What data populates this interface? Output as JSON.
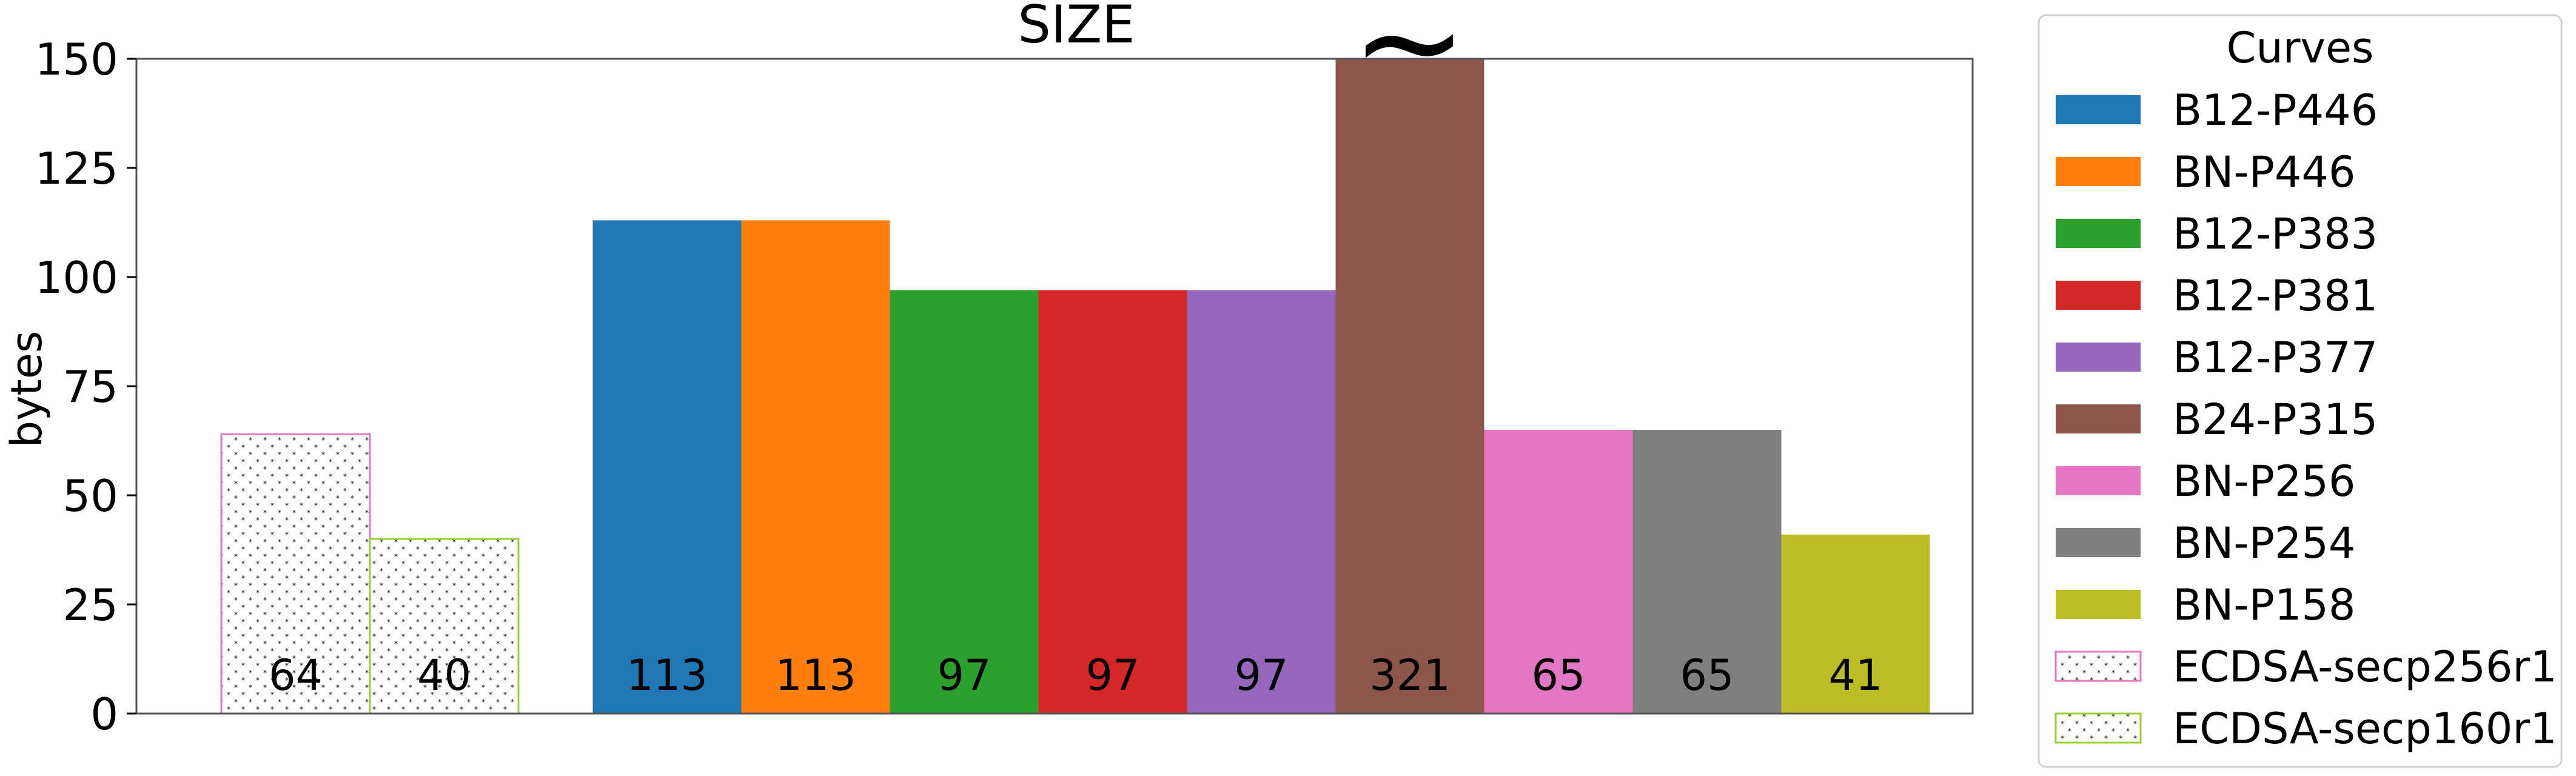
{
  "chart_data": {
    "type": "bar",
    "title": "SIZE",
    "xlabel": "",
    "ylabel": "bytes",
    "ylim": [
      0,
      150
    ],
    "yticks": [
      0,
      25,
      50,
      75,
      100,
      125,
      150
    ],
    "grid": false,
    "legend_title": "Curves",
    "legend_position": "right, outside plot",
    "break_marker": "~",
    "series": [
      {
        "name": "ECDSA-secp256r1",
        "value": 64,
        "label": "64",
        "color": "#e377c2",
        "hatch": true,
        "slot": 0
      },
      {
        "name": "ECDSA-secp160r1",
        "value": 40,
        "label": "40",
        "color": "#9acd32",
        "hatch": true,
        "slot": 1
      },
      {
        "name": "B12-P446",
        "value": 113,
        "label": "113",
        "color": "#1f77b4",
        "hatch": false,
        "slot": 2.5
      },
      {
        "name": "BN-P446",
        "value": 113,
        "label": "113",
        "color": "#ff7f0e",
        "hatch": false,
        "slot": 3.5
      },
      {
        "name": "B12-P383",
        "value": 97,
        "label": "97",
        "color": "#2ca02c",
        "hatch": false,
        "slot": 4.5
      },
      {
        "name": "B12-P381",
        "value": 97,
        "label": "97",
        "color": "#d62728",
        "hatch": false,
        "slot": 5.5
      },
      {
        "name": "B12-P377",
        "value": 97,
        "label": "97",
        "color": "#9467bd",
        "hatch": false,
        "slot": 6.5
      },
      {
        "name": "B24-P315",
        "value": 321,
        "label": "321",
        "color": "#8c564b",
        "hatch": false,
        "slot": 7.5,
        "clipped": true
      },
      {
        "name": "BN-P256",
        "value": 65,
        "label": "65",
        "color": "#e377c2",
        "hatch": false,
        "slot": 8.5
      },
      {
        "name": "BN-P254",
        "value": 65,
        "label": "65",
        "color": "#7f7f7f",
        "hatch": false,
        "slot": 9.5
      },
      {
        "name": "BN-P158",
        "value": 41,
        "label": "41",
        "color": "#bcbd22",
        "hatch": false,
        "slot": 10.5
      }
    ],
    "legend_order": [
      "B12-P446",
      "BN-P446",
      "B12-P383",
      "B12-P381",
      "B12-P377",
      "B24-P315",
      "BN-P256",
      "BN-P254",
      "BN-P158",
      "ECDSA-secp256r1",
      "ECDSA-secp160r1"
    ]
  }
}
